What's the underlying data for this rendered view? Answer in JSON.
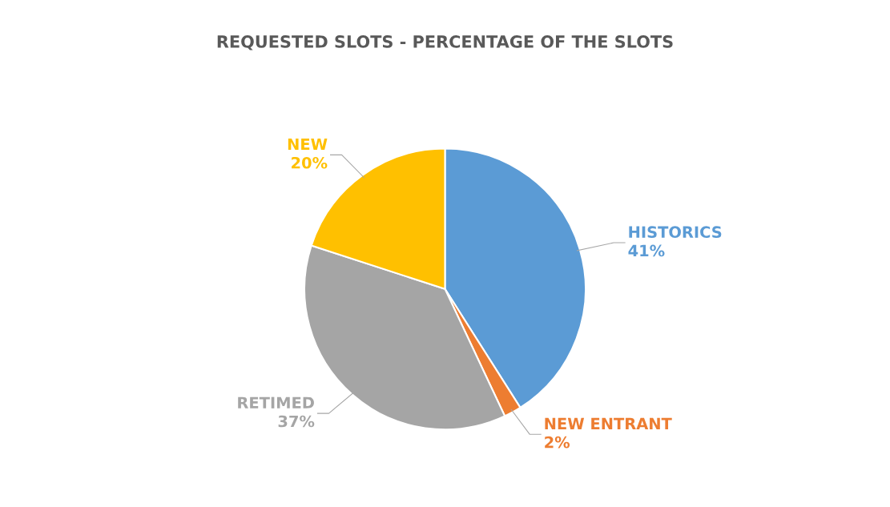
{
  "chart_data": {
    "type": "pie",
    "title": "REQUESTED SLOTS - PERCENTAGE OF THE SLOTS",
    "categories": [
      "HISTORICS",
      "NEW ENTRANT",
      "RETIMED",
      "NEW"
    ],
    "values": [
      41,
      2,
      37,
      20
    ],
    "value_labels": [
      "41%",
      "2%",
      "37%",
      "20%"
    ],
    "colors": [
      "#5b9bd5",
      "#ed7d31",
      "#a5a5a5",
      "#ffc000"
    ],
    "legend": false
  }
}
